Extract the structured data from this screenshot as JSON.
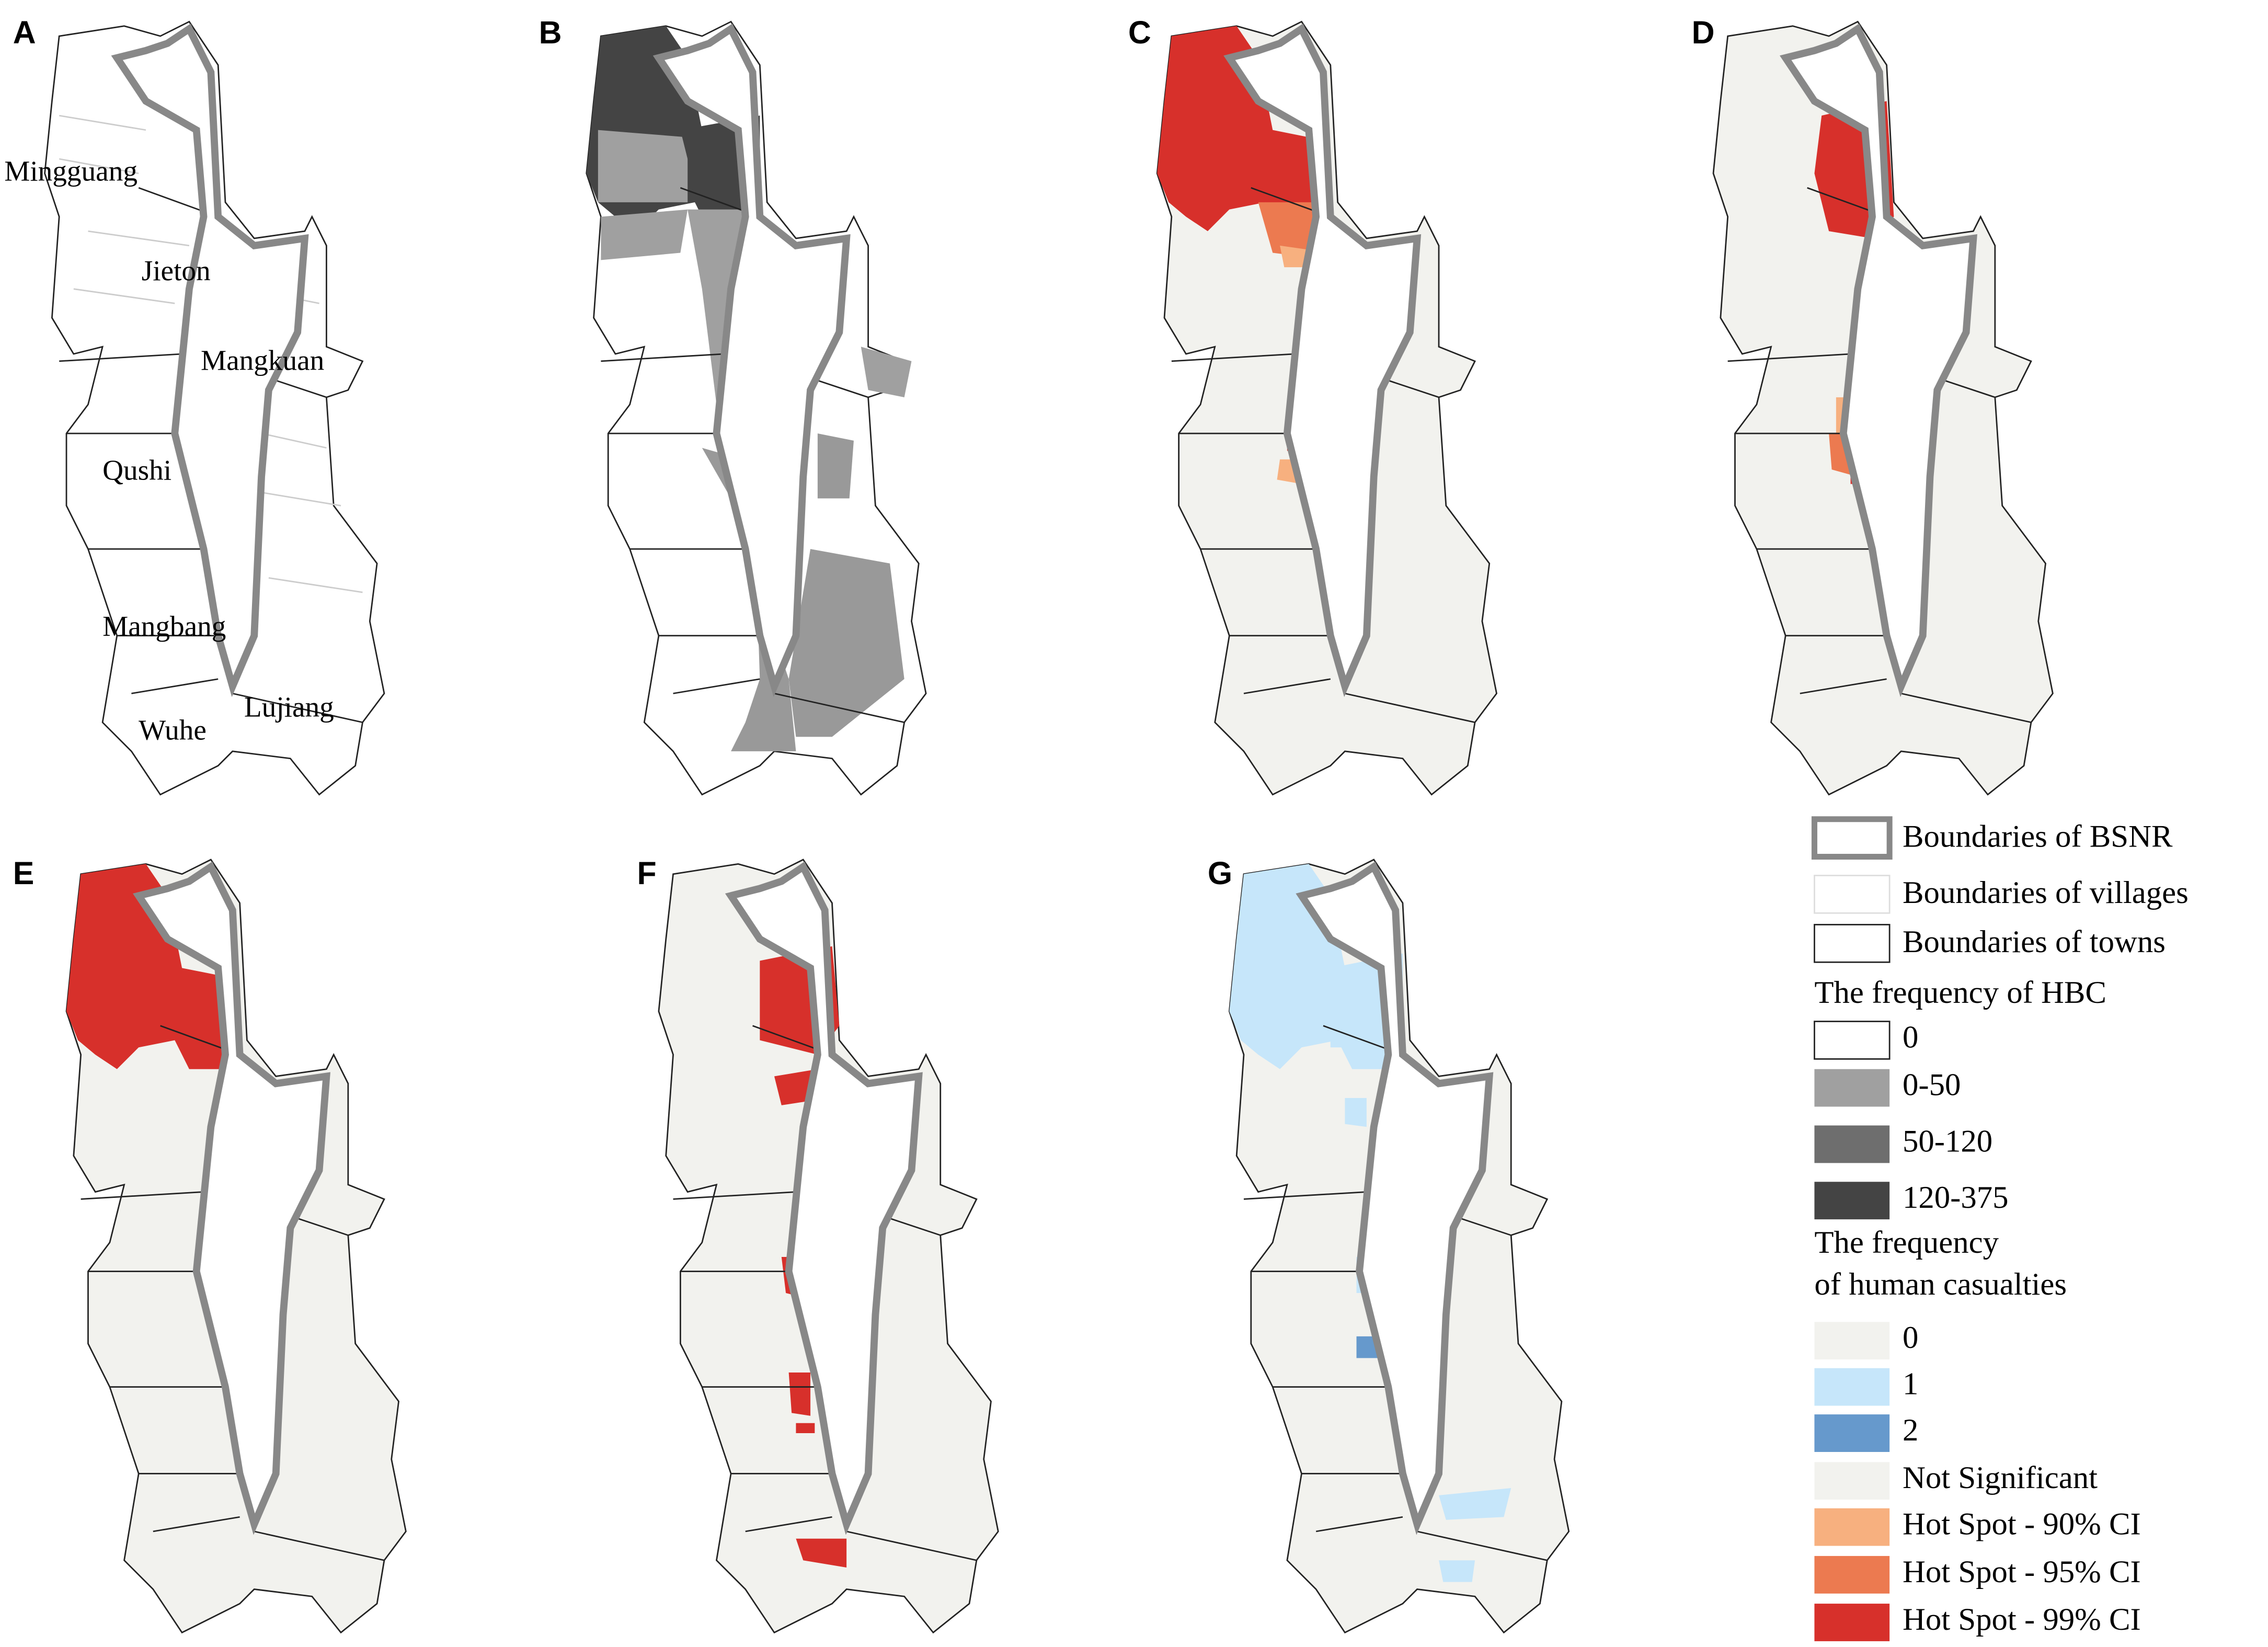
{
  "panels": [
    {
      "label": "A",
      "towns": [
        "Mingguang",
        "Jieton",
        "Mangkuan",
        "Qushi",
        "Mangbang",
        "Wuhe",
        "Lujiang"
      ]
    },
    {
      "label": "B"
    },
    {
      "label": "C"
    },
    {
      "label": "D"
    },
    {
      "label": "E"
    },
    {
      "label": "F"
    },
    {
      "label": "G"
    }
  ],
  "legend": {
    "boundaries": [
      "Boundaries of BSNR",
      "Boundaries of villages",
      "Boundaries of towns"
    ],
    "hbc": {
      "title": "The frequency of HBC",
      "items": [
        "0",
        "0-50",
        "50-120",
        "120-375"
      ]
    },
    "casualties": {
      "title": [
        "The frequency",
        "of human casualties"
      ],
      "items": [
        "0",
        "1",
        "2"
      ]
    },
    "hotspot": [
      "Not Significant",
      "Hot Spot - 90% CI",
      "Hot Spot - 95% CI",
      "Hot Spot - 99% CI"
    ]
  }
}
